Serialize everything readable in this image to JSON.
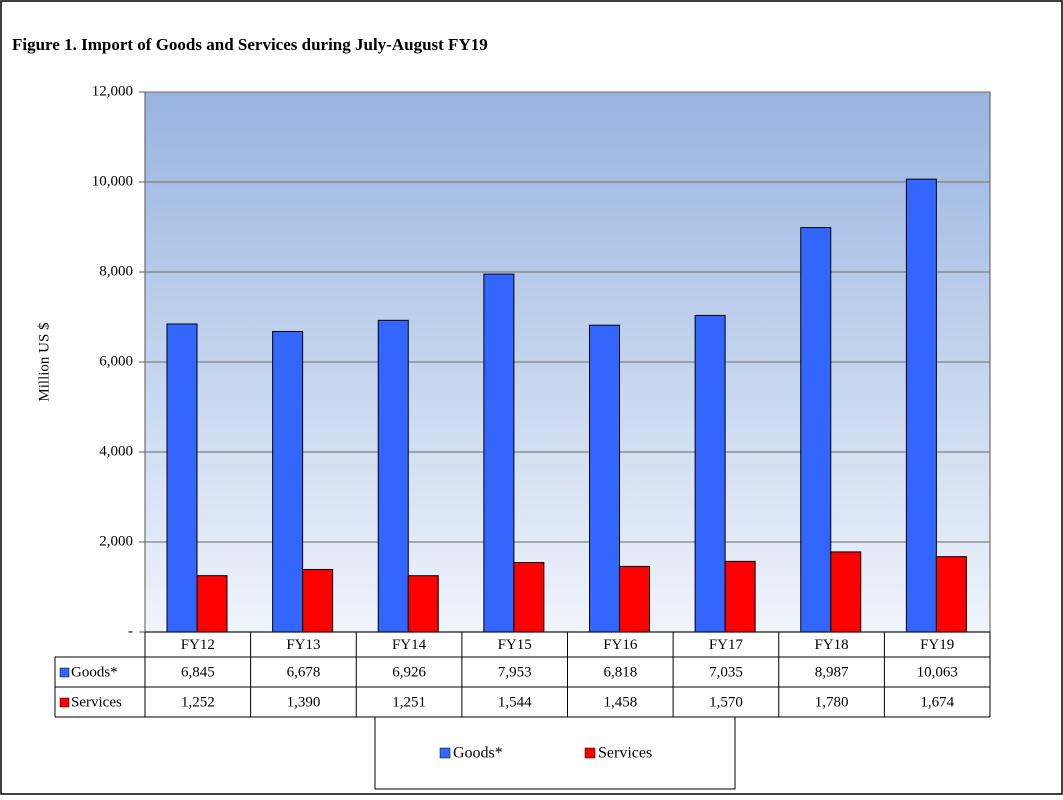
{
  "chart_data": {
    "type": "bar",
    "title": "Figure 1. Import  of Goods and Services  during  July-August  FY19",
    "y_label": "Million US $",
    "categories": [
      "FY12",
      "FY13",
      "FY14",
      "FY15",
      "FY16",
      "FY17",
      "FY18",
      "FY19"
    ],
    "series": [
      {
        "name": "Goods*",
        "color": "#3366ff",
        "values": [
          6845,
          6678,
          6926,
          7953,
          6818,
          7035,
          8987,
          10063
        ],
        "value_labels": [
          "6,845",
          "6,678",
          "6,926",
          "7,953",
          "6,818",
          "7,035",
          "8,987",
          "10,063"
        ]
      },
      {
        "name": "Services",
        "color": "#ff0000",
        "values": [
          1252,
          1390,
          1251,
          1544,
          1458,
          1570,
          1780,
          1674
        ],
        "value_labels": [
          "1,252",
          "1,390",
          "1,251",
          "1,544",
          "1,458",
          "1,570",
          "1,780",
          "1,674"
        ]
      }
    ],
    "ylim": [
      0,
      12000
    ],
    "yticks": [
      {
        "value": 0,
        "label": "-"
      },
      {
        "value": 2000,
        "label": "2,000"
      },
      {
        "value": 4000,
        "label": "4,000"
      },
      {
        "value": 6000,
        "label": "6,000"
      },
      {
        "value": 8000,
        "label": "8,000"
      },
      {
        "value": 10000,
        "label": "10,000"
      },
      {
        "value": 12000,
        "label": "12,000"
      }
    ],
    "grid": true
  }
}
